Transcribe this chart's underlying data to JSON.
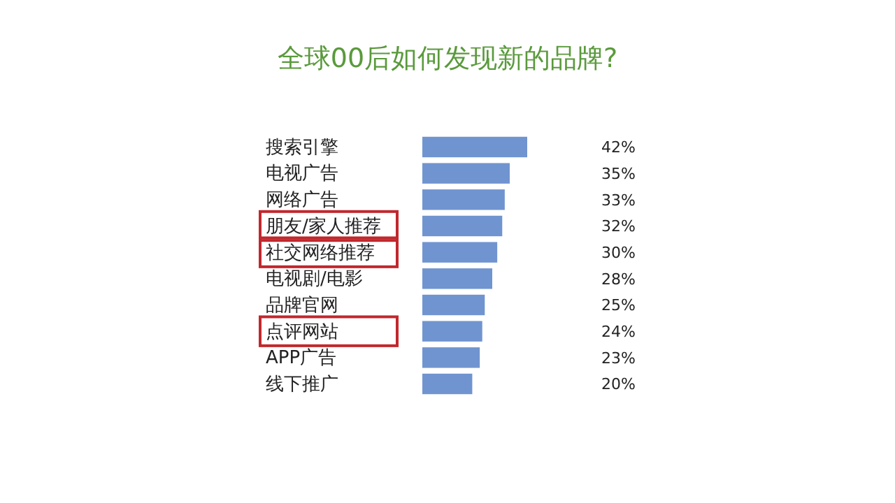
{
  "chart_data": {
    "type": "bar",
    "orientation": "horizontal",
    "title": "全球00后如何发现新的品牌?",
    "categories": [
      "搜索引擎",
      "电视广告",
      "网络广告",
      "朋友/家人推荐",
      "社交网络推荐",
      "电视剧/电影",
      "品牌官网",
      "点评网站",
      "APP广告",
      "线下推广"
    ],
    "values": [
      42,
      35,
      33,
      32,
      30,
      28,
      25,
      24,
      23,
      20
    ],
    "value_labels": [
      "42%",
      "35%",
      "33%",
      "32%",
      "30%",
      "28%",
      "25%",
      "24%",
      "23%",
      "20%"
    ],
    "color": "#7094cf"
  }
}
